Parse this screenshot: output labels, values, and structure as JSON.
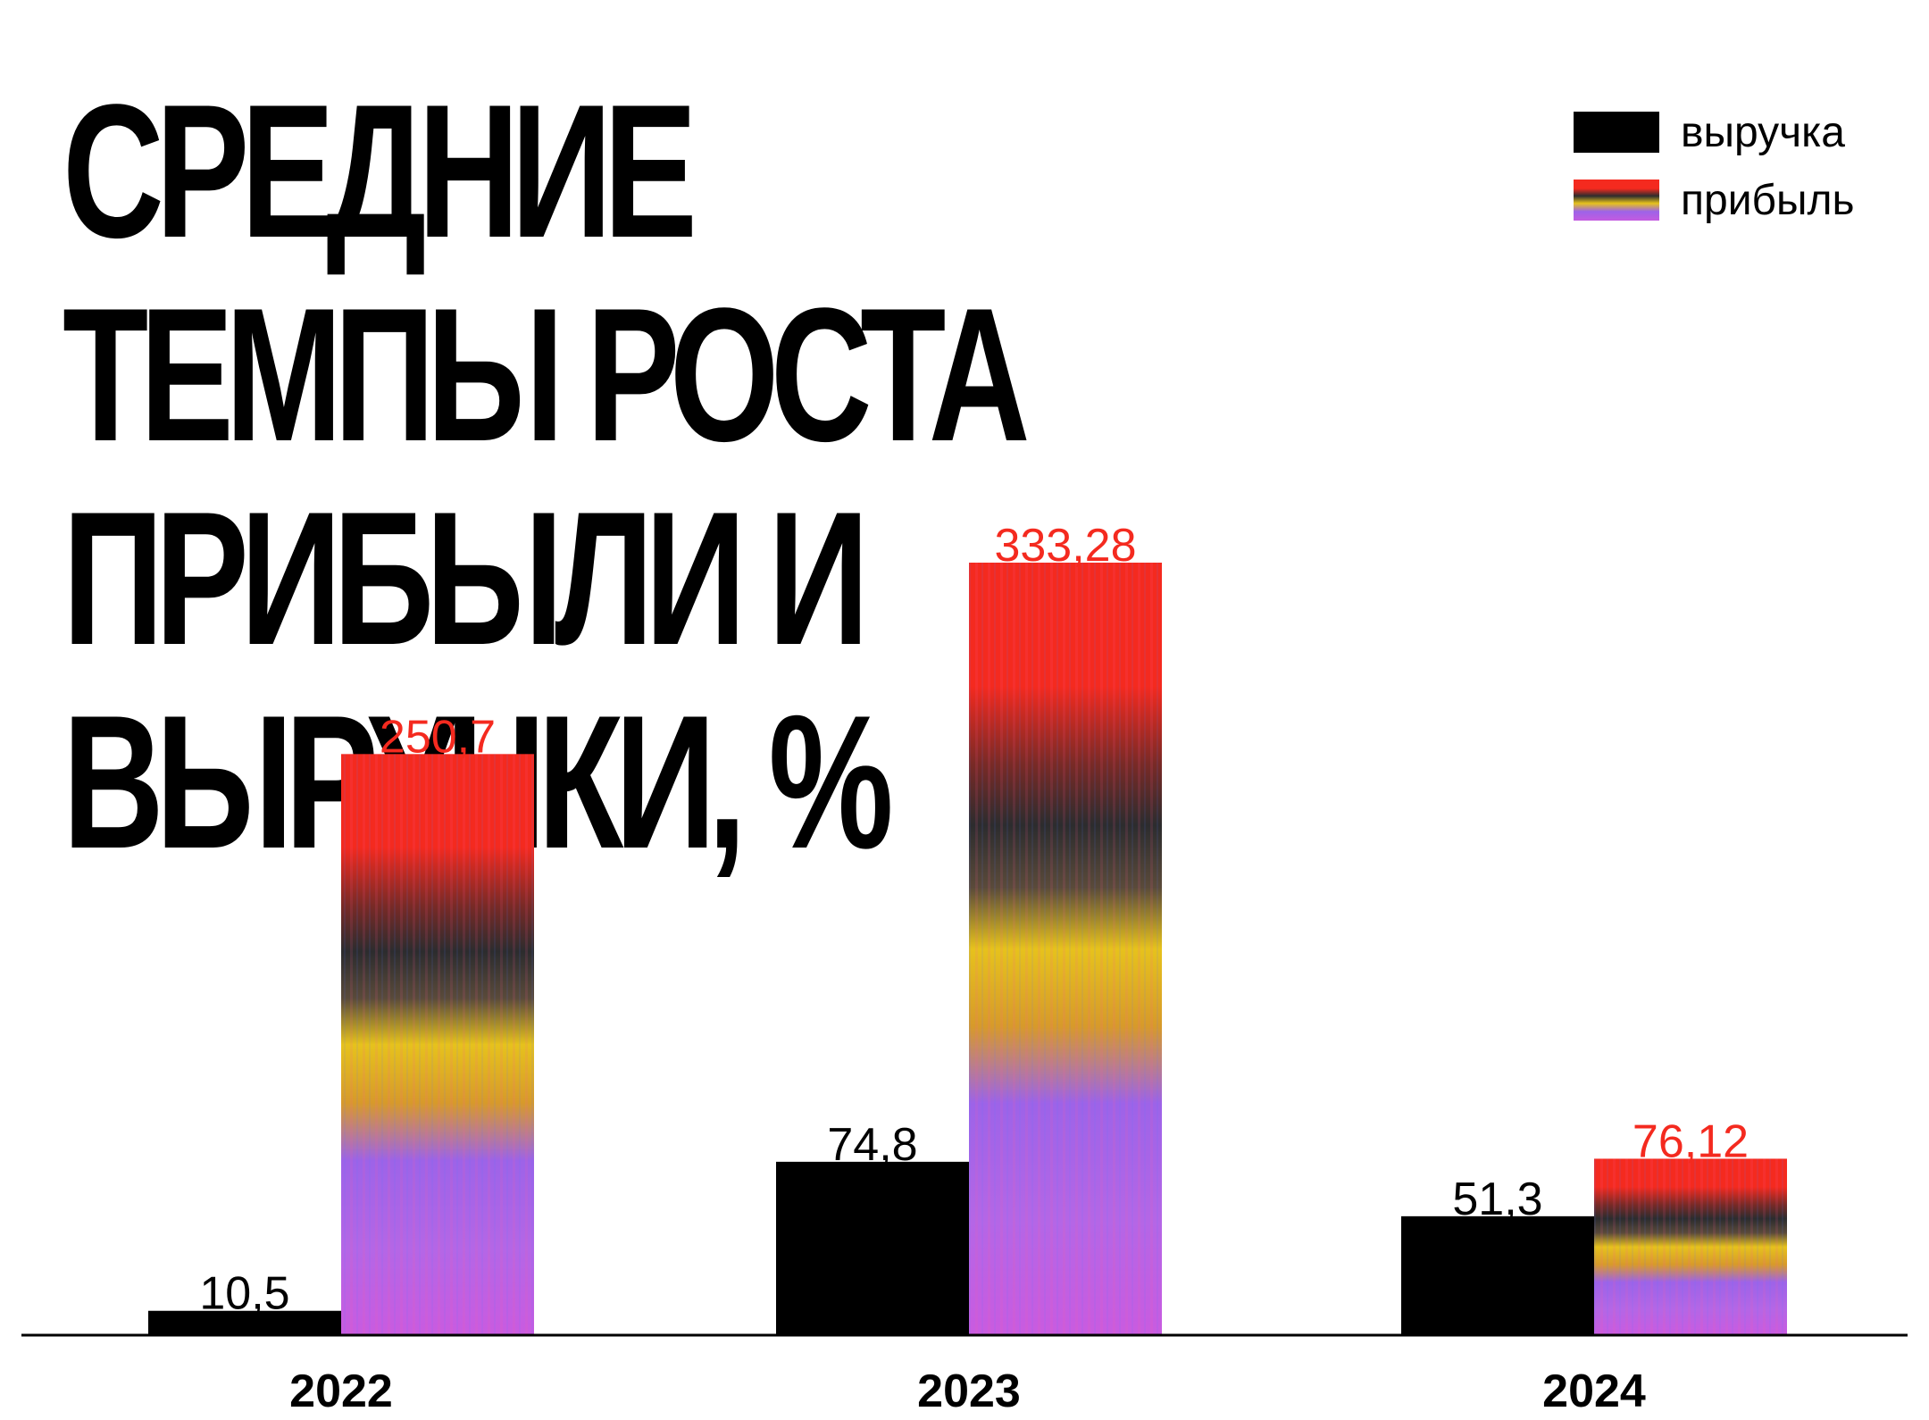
{
  "chart_data": {
    "type": "bar",
    "title": "СРЕДНИЕ ТЕМПЫ РОСТА ПРИБЫЛИ И ВЫРУЧКИ, %",
    "categories": [
      "2022",
      "2023",
      "2024"
    ],
    "series": [
      {
        "name": "выручка",
        "values": [
          10.5,
          74.8,
          51.3
        ],
        "labels": [
          "10,5",
          "74,8",
          "51,3"
        ],
        "color": "#000000"
      },
      {
        "name": "прибыль",
        "values": [
          250.7,
          333.28,
          76.12
        ],
        "labels": [
          "250,7",
          "333,28",
          "76,12"
        ],
        "color": "#f42a1f"
      }
    ],
    "ylim": [
      0,
      333.28
    ],
    "legend": "top-right",
    "grid": false
  },
  "colors": {
    "text": "#000000",
    "accent_red": "#f42a1f",
    "violet": "#9d63e8",
    "yellow": "#e6c21c",
    "smoke": "#2c2c2e"
  }
}
